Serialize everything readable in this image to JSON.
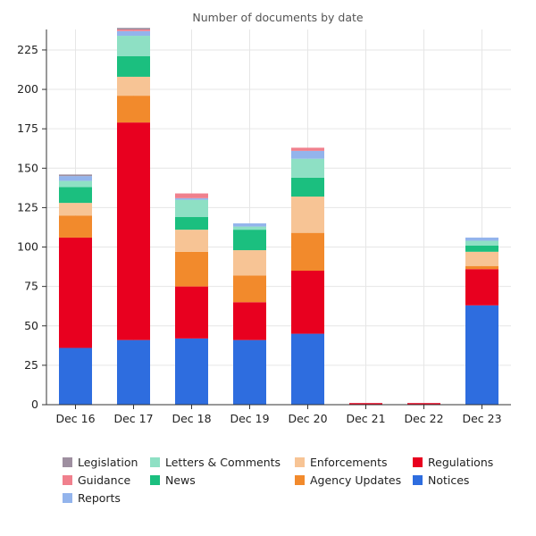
{
  "chart_data": {
    "type": "bar",
    "stacked": true,
    "title": "Number of documents by date",
    "xlabel": "",
    "ylabel": "",
    "categories": [
      "Dec 16",
      "Dec 17",
      "Dec 18",
      "Dec 19",
      "Dec 20",
      "Dec 21",
      "Dec 22",
      "Dec 23"
    ],
    "ylim": [
      0,
      238
    ],
    "yticks": [
      0,
      25,
      50,
      75,
      100,
      125,
      150,
      175,
      200,
      225
    ],
    "grid": true,
    "legend_position": "bottom",
    "series": [
      {
        "name": "Notices",
        "color": "#2e6ddf",
        "values": [
          36,
          41,
          42,
          41,
          45,
          0,
          0,
          63
        ]
      },
      {
        "name": "Regulations",
        "color": "#e8001f",
        "values": [
          70,
          138,
          33,
          24,
          40,
          1,
          1,
          23
        ]
      },
      {
        "name": "Agency Updates",
        "color": "#f28a2c",
        "values": [
          14,
          17,
          22,
          17,
          24,
          0,
          0,
          2
        ]
      },
      {
        "name": "Enforcements",
        "color": "#f7c495",
        "values": [
          8,
          12,
          14,
          16,
          23,
          0,
          0,
          9
        ]
      },
      {
        "name": "News",
        "color": "#1bbf7f",
        "values": [
          10,
          13,
          8,
          13,
          12,
          0,
          0,
          4
        ]
      },
      {
        "name": "Letters & Comments",
        "color": "#8ee0c4",
        "values": [
          4,
          13,
          11,
          2,
          12,
          0,
          0,
          3
        ]
      },
      {
        "name": "Reports",
        "color": "#93b4ec",
        "values": [
          3,
          3,
          1,
          2,
          5,
          0,
          0,
          2
        ]
      },
      {
        "name": "Guidance",
        "color": "#f0808d",
        "values": [
          0,
          1,
          3,
          0,
          2,
          0,
          0,
          0
        ]
      },
      {
        "name": "Legislation",
        "color": "#9e8fa0",
        "values": [
          1,
          1,
          0,
          0,
          0,
          0,
          0,
          0
        ]
      }
    ],
    "legend_order": [
      "Legislation",
      "Letters & Comments",
      "Enforcements",
      "Regulations",
      "Guidance",
      "News",
      "Agency Updates",
      "Notices",
      "Reports"
    ]
  }
}
